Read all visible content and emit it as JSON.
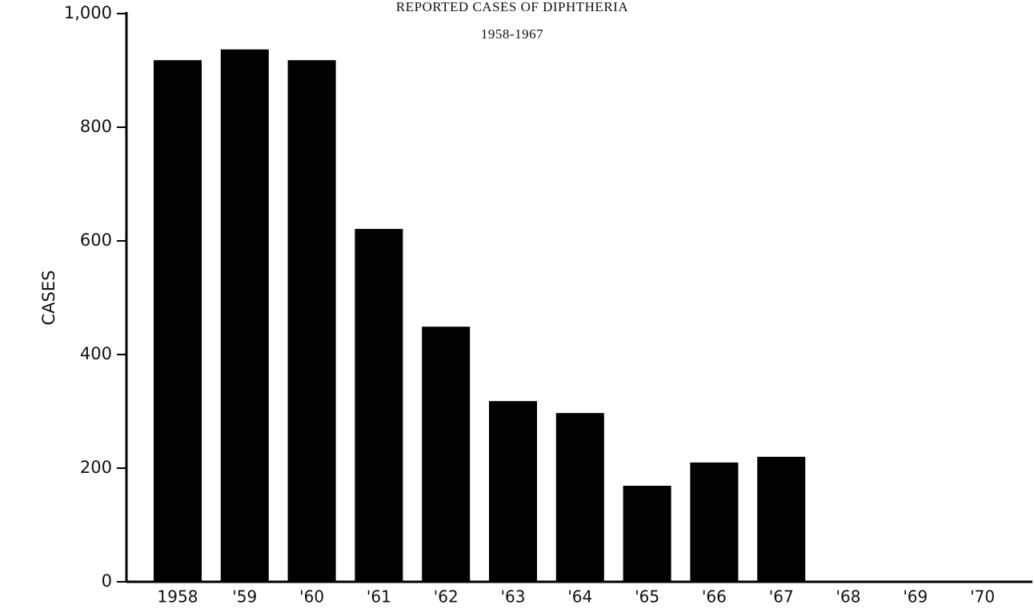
{
  "chart_data": {
    "type": "bar",
    "title": "REPORTED CASES OF DIPHTHERIA",
    "subtitle": "1958-1967",
    "y_label": "CASES",
    "categories": [
      "1958",
      "'59",
      "'60",
      "'61",
      "'62",
      "'63",
      "'64",
      "'65",
      "'66",
      "'67",
      "'68",
      "'69",
      "'70"
    ],
    "values": [
      918,
      937,
      918,
      621,
      449,
      318,
      297,
      169,
      210,
      220,
      null,
      null,
      null
    ],
    "color": "#000000",
    "ylim": [
      0,
      1000
    ],
    "yticks": [
      0,
      200,
      400,
      600,
      800,
      {
        "value": 1000,
        "label": "1,000"
      }
    ],
    "grid": false
  }
}
